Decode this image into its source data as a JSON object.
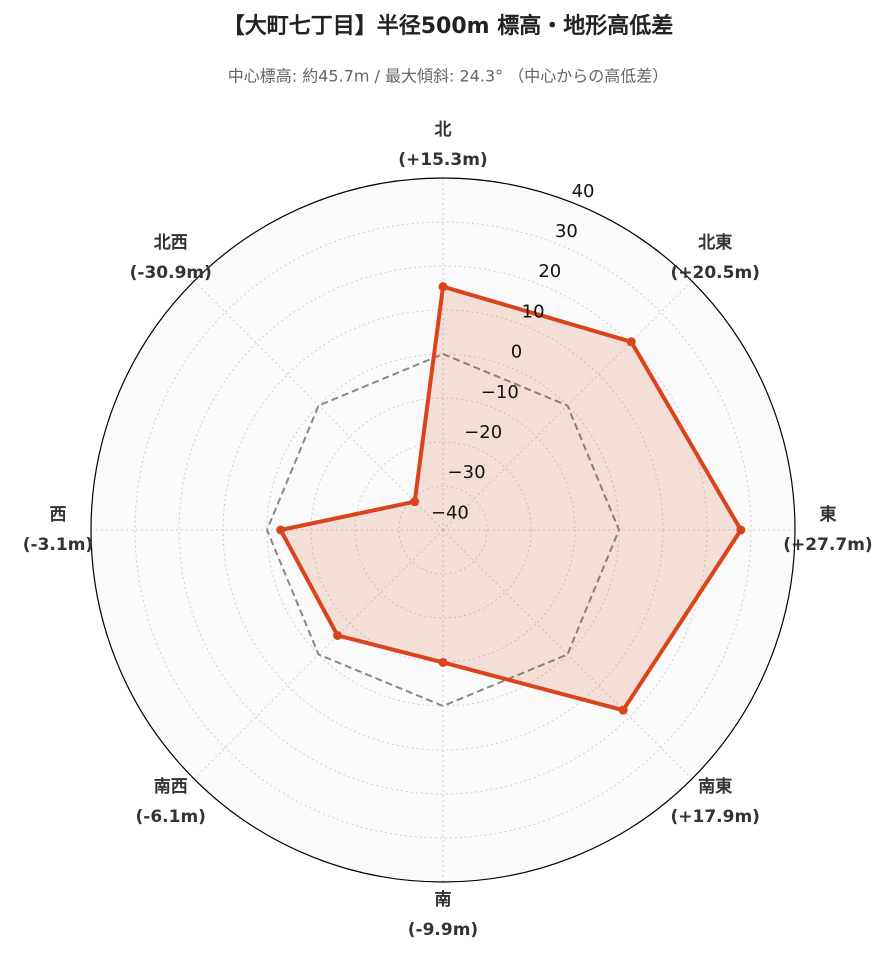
{
  "chart_data": {
    "type": "radar",
    "title": "【大町七丁目】半径500m 標高・地形高低差",
    "subtitle": "中心標高: 約45.7m / 最大傾斜: 24.3° （中心からの高低差）",
    "categories": [
      "北",
      "北東",
      "東",
      "南東",
      "南",
      "南西",
      "西",
      "北西"
    ],
    "values": [
      15.3,
      20.5,
      27.7,
      17.9,
      -9.9,
      -6.1,
      -3.1,
      -30.9
    ],
    "value_labels": [
      "(+15.3m)",
      "(+20.5m)",
      "(+27.7m)",
      "(+17.9m)",
      "(-9.9m)",
      "(-6.1m)",
      "(-3.1m)",
      "(-30.9m)"
    ],
    "color": "#d9441c",
    "reference": 0,
    "ylim": [
      -40,
      40
    ],
    "yticks": [
      {
        "value": -40,
        "label": "−40"
      },
      {
        "value": -30,
        "label": "−30"
      },
      {
        "value": -20,
        "label": "−20"
      },
      {
        "value": -10,
        "label": "−10"
      },
      0,
      10,
      20,
      30,
      40
    ],
    "grid": true
  }
}
